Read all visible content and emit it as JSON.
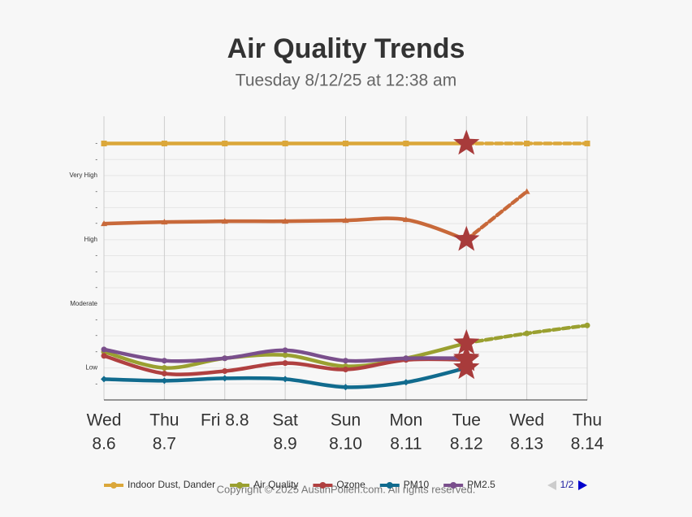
{
  "chart_data": {
    "type": "line",
    "title": "Air Quality Trends",
    "subtitle": "Tuesday 8/12/25 at 12:38 am",
    "categories": [
      [
        "Wed",
        "8.6"
      ],
      [
        "Thu",
        "8.7"
      ],
      [
        "Fri 8.8"
      ],
      [
        "Sat",
        "8.9"
      ],
      [
        "Sun",
        "8.10"
      ],
      [
        "Mon",
        "8.11"
      ],
      [
        "Tue",
        "8.12"
      ],
      [
        "Wed",
        "8.13"
      ],
      [
        "Thu",
        "8.14"
      ]
    ],
    "current_category_index": 6,
    "ylim": [
      0,
      17.7
    ],
    "yticks": [
      {
        "value": 1,
        "label": "-"
      },
      {
        "value": 2,
        "label": "Low"
      },
      {
        "value": 3,
        "label": "-"
      },
      {
        "value": 4,
        "label": "-"
      },
      {
        "value": 5,
        "label": "-"
      },
      {
        "value": 6,
        "label": "Moderate"
      },
      {
        "value": 7,
        "label": "-"
      },
      {
        "value": 8,
        "label": "-"
      },
      {
        "value": 9,
        "label": "-"
      },
      {
        "value": 10,
        "label": "High"
      },
      {
        "value": 11,
        "label": "-"
      },
      {
        "value": 12,
        "label": "-"
      },
      {
        "value": 13,
        "label": "-"
      },
      {
        "value": 14,
        "label": "Very High"
      },
      {
        "value": 15,
        "label": "-"
      },
      {
        "value": 16,
        "label": "-"
      }
    ],
    "grid": true,
    "series": [
      {
        "name": null,
        "color": "#c8693a",
        "marker": "triangle",
        "values": [
          11,
          11.1,
          11.15,
          11.15,
          11.2,
          11.25,
          10,
          13,
          null
        ]
      },
      {
        "name": "Indoor Dust, Dander",
        "color": "#dba73a",
        "marker": "square",
        "values": [
          16,
          16,
          16,
          16,
          16,
          16,
          16,
          16,
          16
        ]
      },
      {
        "name": "Air Quality",
        "color": "#9aa030",
        "marker": "circle",
        "values": [
          3,
          2,
          2.6,
          2.8,
          2.1,
          2.6,
          3.55,
          4.15,
          4.65
        ]
      },
      {
        "name": "Ozone",
        "color": "#b04040",
        "marker": "circle",
        "values": [
          2.75,
          1.65,
          1.8,
          2.3,
          1.9,
          2.5,
          2.5,
          null,
          null
        ]
      },
      {
        "name": "PM10",
        "color": "#116b8e",
        "marker": "diamond",
        "values": [
          1.3,
          1.2,
          1.35,
          1.3,
          0.8,
          1.1,
          2,
          null,
          null
        ]
      },
      {
        "name": "PM2.5",
        "color": "#7a4f8c",
        "marker": "circle",
        "values": [
          3.15,
          2.45,
          2.6,
          3.1,
          2.45,
          2.6,
          2.6,
          null,
          null
        ]
      }
    ],
    "legend_page": "1/2",
    "copyright": "Copyright © 2025 AustinPollen.com.  All rights reserved."
  }
}
